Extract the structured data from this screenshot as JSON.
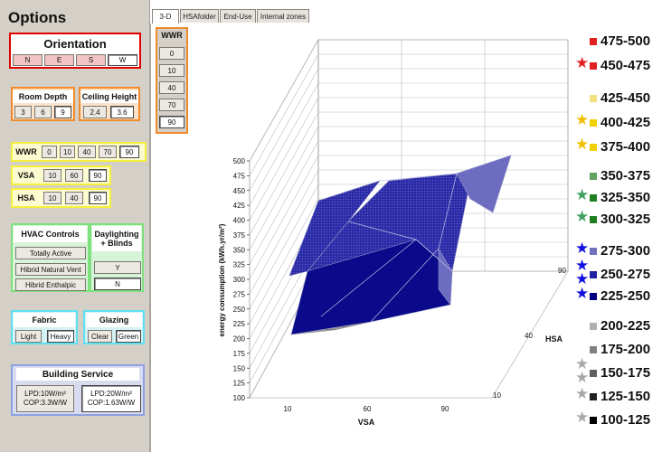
{
  "options": {
    "title": "Options",
    "orientation": {
      "title": "Orientation",
      "buttons": [
        "N",
        "E",
        "S",
        "W"
      ]
    },
    "room_depth": {
      "title": "Room Depth",
      "buttons": [
        "3",
        "6",
        "9"
      ]
    },
    "ceiling_height": {
      "title": "Ceiling Height",
      "buttons": [
        "2.4",
        "3.6"
      ]
    },
    "wwr": {
      "label": "WWR",
      "buttons": [
        "0",
        "10",
        "40",
        "70",
        "90"
      ]
    },
    "vsa": {
      "label": "VSA",
      "buttons": [
        "10",
        "60",
        "90"
      ]
    },
    "hsa": {
      "label": "HSA",
      "buttons": [
        "10",
        "40",
        "90"
      ]
    },
    "hvac": {
      "title": "HVAC Controls",
      "buttons": [
        "Totally Active",
        "Hibrid Natural Vent",
        "Hibrid Enthalpic"
      ]
    },
    "daylighting": {
      "title": "Daylighting + Blinds",
      "buttons": [
        "Y",
        "N"
      ]
    },
    "fabric": {
      "title": "Fabric",
      "buttons": [
        "Light",
        "Heavy"
      ]
    },
    "glazing": {
      "title": "Glazing",
      "buttons": [
        "Clear",
        "Green"
      ]
    },
    "building_service": {
      "title": "Building Service",
      "option1": [
        "LPD:10W/m²",
        "COP:3.3W/W"
      ],
      "option2": [
        "LPD:20W/m²",
        "COP:1.63W/W"
      ]
    }
  },
  "tabs": [
    "3-D",
    "HSAfolder",
    "End-Use",
    "Internal zones"
  ],
  "wwr_panel": {
    "title": "WWR",
    "buttons": [
      "0",
      "10",
      "40",
      "70",
      "90"
    ]
  },
  "colors": {
    "orange": "#f08a2a",
    "red": "#e00000",
    "yellow": "#f5f03c",
    "green": "#7ee07e",
    "cyan": "#5fe0f0",
    "lilac": "#8ea0e0",
    "surface_dark": "#0a0a8a",
    "surface_mid": "#2c2ca8",
    "surface_light": "#6c6cc0",
    "surface_gray": "#9a9a9a"
  },
  "chart_data": {
    "type": "surface",
    "zlabel": "energy consumption (kWh.yr/m²)",
    "xlabel": "VSA",
    "ylabel": "HSA",
    "z_ticks": [
      "500",
      "475",
      "450",
      "425",
      "400",
      "375",
      "350",
      "325",
      "300",
      "275",
      "250",
      "225",
      "200",
      "175",
      "150",
      "125",
      "100"
    ],
    "x_ticks": [
      "10",
      "60",
      "90"
    ],
    "y_ticks": [
      "90",
      "40",
      "10"
    ],
    "zlim": [
      100,
      500
    ]
  },
  "legend": [
    {
      "label": "475-500",
      "color": "#e02020",
      "stars": 0,
      "star_color": ""
    },
    {
      "label": "450-475",
      "color": "#e02020",
      "stars": 1,
      "star_color": "#e02020"
    },
    {
      "label": "425-450",
      "color": "#f0e080",
      "stars": 0,
      "star_color": ""
    },
    {
      "label": "400-425",
      "color": "#f0d000",
      "stars": 1,
      "star_color": "#f0c000"
    },
    {
      "label": "375-400",
      "color": "#f0d000",
      "stars": 1,
      "star_color": "#f0c000"
    },
    {
      "label": "350-375",
      "color": "#60a060",
      "stars": 0,
      "star_color": ""
    },
    {
      "label": "325-350",
      "color": "#208020",
      "stars": 1,
      "star_color": "#40a060"
    },
    {
      "label": "300-325",
      "color": "#208020",
      "stars": 1,
      "star_color": "#40a060"
    },
    {
      "label": "275-300",
      "color": "#7070c0",
      "stars": 1,
      "star_color": "#1010e0"
    },
    {
      "label": "250-275",
      "color": "#2020a0",
      "stars": 2,
      "star_color": "#1010e0"
    },
    {
      "label": "225-250",
      "color": "#000080",
      "stars": 1,
      "star_color": "#1010e0"
    },
    {
      "label": "200-225",
      "color": "#b0b0b0",
      "stars": 0,
      "star_color": ""
    },
    {
      "label": "175-200",
      "color": "#808080",
      "stars": 0,
      "star_color": ""
    },
    {
      "label": "150-175",
      "color": "#606060",
      "stars": 2,
      "star_color": "#a8a8a8"
    },
    {
      "label": "125-150",
      "color": "#202020",
      "stars": 1,
      "star_color": "#a8a8a8"
    },
    {
      "label": "100-125",
      "color": "#000000",
      "stars": 1,
      "star_color": "#a8a8a8"
    }
  ]
}
